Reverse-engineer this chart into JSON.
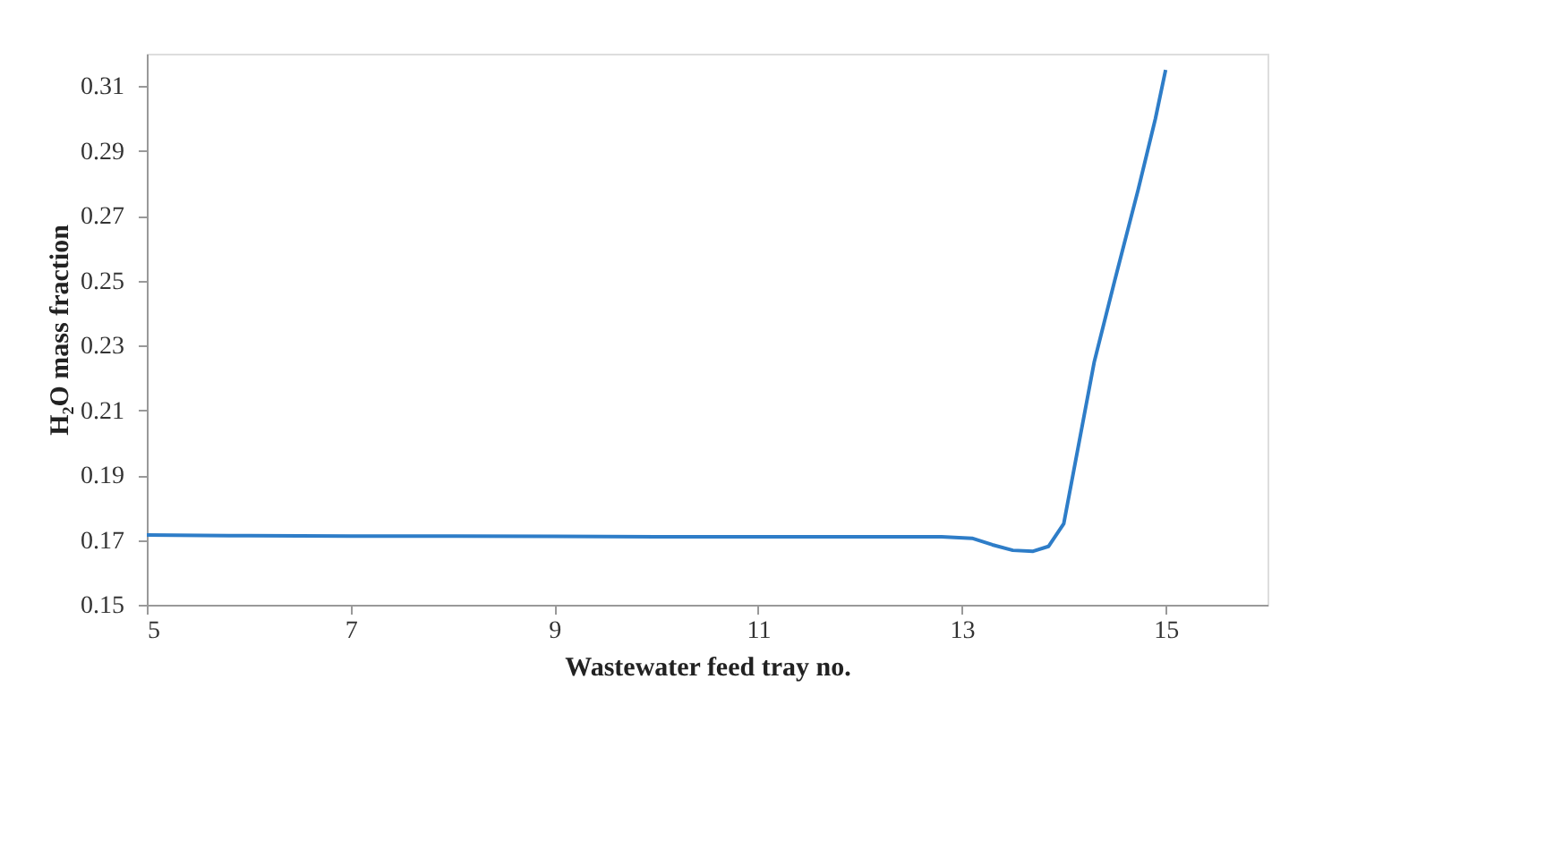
{
  "chart_data": {
    "type": "line",
    "xlabel": "Wastewater feed tray no.",
    "ylabel": "H₂O mass fraction",
    "series": [
      {
        "color": "#2e7dc8",
        "x": [
          5,
          6,
          7,
          8,
          9,
          10,
          11,
          12,
          12.8,
          13.1,
          13.3,
          13.5,
          13.7,
          13.85,
          14.0,
          14.12,
          14.3,
          14.5,
          14.73,
          14.9,
          15.0
        ],
        "values": [
          0.1715,
          0.1713,
          0.1712,
          0.1712,
          0.1711,
          0.171,
          0.171,
          0.171,
          0.171,
          0.1705,
          0.1685,
          0.1668,
          0.1665,
          0.168,
          0.175,
          0.195,
          0.225,
          0.25,
          0.278,
          0.3,
          0.315
        ]
      }
    ],
    "xlim": [
      5,
      16
    ],
    "xticks": [
      5,
      7,
      9,
      11,
      13,
      15
    ],
    "ylim": [
      0.15,
      0.32
    ],
    "yticks": [
      0.15,
      0.17,
      0.19,
      0.21,
      0.23,
      0.25,
      0.27,
      0.29,
      0.31
    ],
    "grid": false,
    "legend": false,
    "marker": "none",
    "line_style": "solid"
  }
}
